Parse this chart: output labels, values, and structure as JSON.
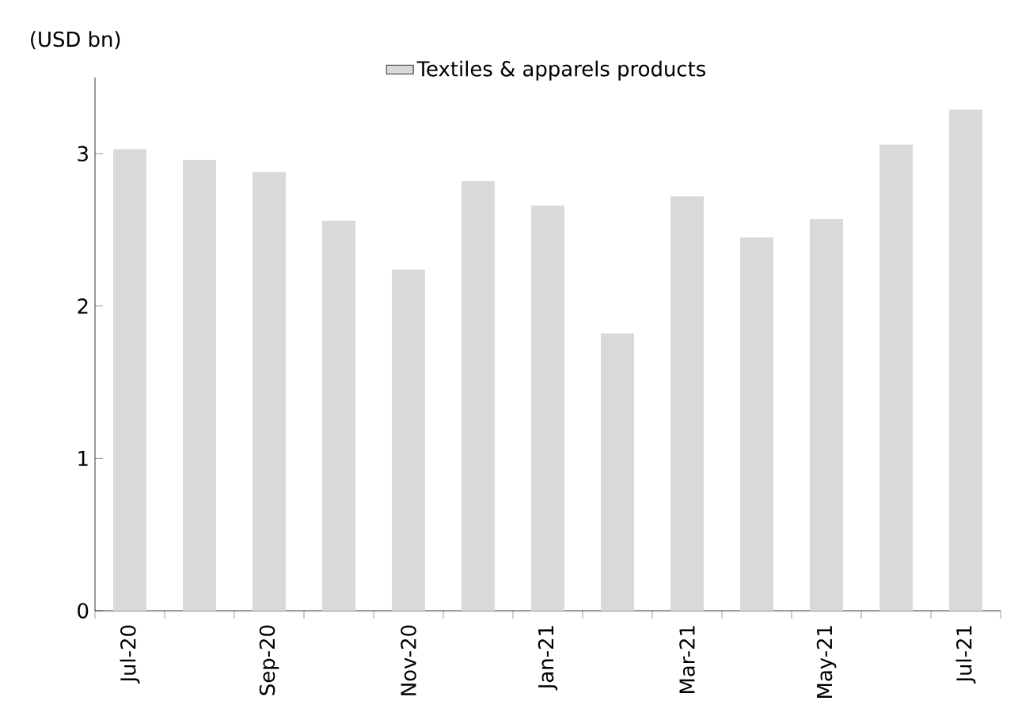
{
  "chart_data": {
    "type": "bar",
    "ylabel": "(USD bn)",
    "categories": [
      "Jul-20",
      null,
      "Sep-20",
      null,
      "Nov-20",
      null,
      "Jan-21",
      null,
      "Mar-21",
      null,
      "May-21",
      null,
      "Jul-21"
    ],
    "series": [
      {
        "name": "Textiles & apparels products",
        "color": "#d9d9d9",
        "values": [
          3.03,
          2.96,
          2.88,
          2.56,
          2.24,
          2.82,
          2.66,
          1.82,
          2.72,
          2.45,
          2.57,
          3.06,
          3.29
        ]
      }
    ],
    "ylim": [
      0,
      3.5
    ],
    "yticks": [
      0,
      1,
      2,
      3
    ],
    "grid": false,
    "legend": "top"
  }
}
